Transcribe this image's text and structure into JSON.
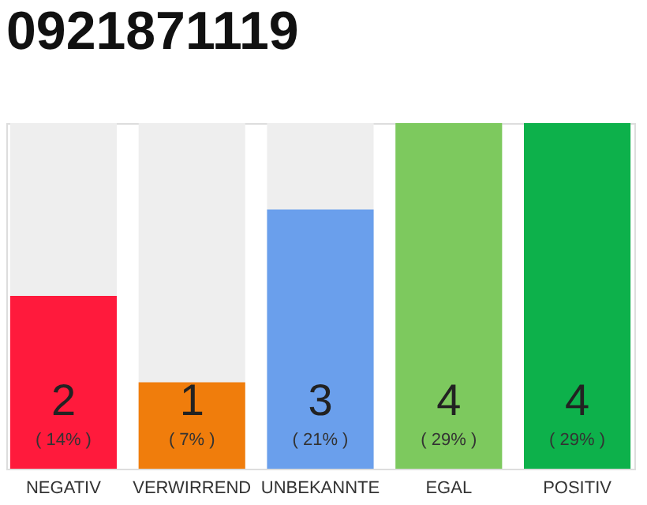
{
  "chart_data": {
    "type": "bar",
    "title": "0921871119",
    "categories": [
      "NEGATIV",
      "VERWIRREND",
      "UNBEKANNTE",
      "EGAL",
      "POSITIV"
    ],
    "values": [
      2,
      1,
      3,
      4,
      4
    ],
    "colors": [
      "#ff1a3c",
      "#f07d0c",
      "#6a9fec",
      "#7dc95e",
      "#0db14b"
    ],
    "tick_labels": "x",
    "data_labels": true,
    "annotations": [
      "( 14% )",
      "( 7% )",
      "( 21% )",
      "( 29% )",
      "( 29% )"
    ]
  }
}
